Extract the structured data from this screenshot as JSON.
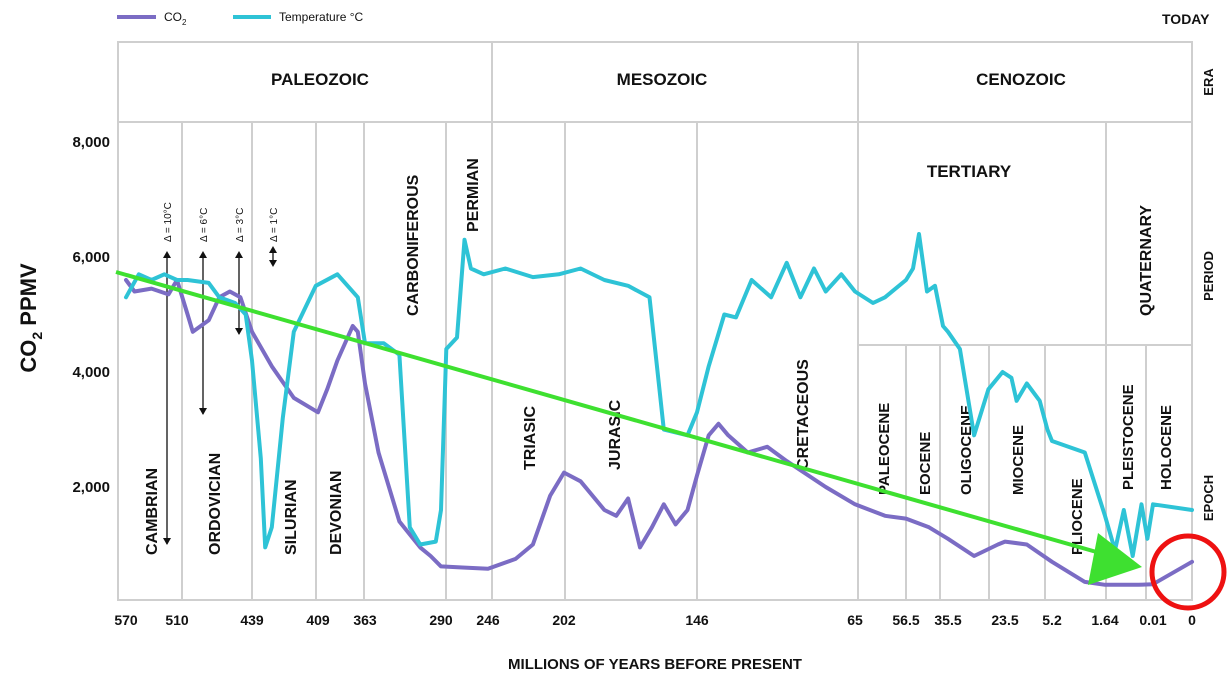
{
  "chart_data": {
    "type": "line",
    "title": "",
    "xlabel": "MILLIONS OF YEARS BEFORE PRESENT",
    "ylabel": "CO2 PPMV",
    "ylabel_main": "CO",
    "ylabel_sub": "2",
    "ylabel_rest": " PPMV",
    "x_ticks": [
      "570",
      "510",
      "439",
      "409",
      "363",
      "290",
      "246",
      "202",
      "146",
      "65",
      "56.5",
      "35.5",
      "23.5",
      "5.2",
      "1.64",
      "0.01",
      "0"
    ],
    "y_ticks": [
      2000,
      4000,
      6000,
      8000
    ],
    "y_tick_labels": [
      "2,000",
      "4,000",
      "6,000",
      "8,000"
    ],
    "ylim": [
      0,
      8000
    ],
    "grid": false,
    "legend": {
      "position": "top-left",
      "co2_main": "CO",
      "co2_sub": "2",
      "temp": "Temperature °C"
    },
    "right_labels": {
      "today": "TODAY",
      "era": "ERA",
      "period": "PERIOD",
      "epoch": "EPOCH"
    },
    "eras": [
      "PALEOZOIC",
      "MESOZOIC",
      "CENOZOIC"
    ],
    "periods": [
      "CAMBRIAN",
      "ORDOVICIAN",
      "SILURIAN",
      "DEVONIAN",
      "CARBONIFEROUS",
      "PERMIAN",
      "TRIASIC",
      "JURASIC",
      "CRETACEOUS",
      "TERTIARY",
      "QUATERNARY"
    ],
    "epochs": [
      "PALEOCENE",
      "EOCENE",
      "OLIGOCENE",
      "MIOCENE",
      "PLIOCENE",
      "PLEISTOCENE",
      "HOLOCENE"
    ],
    "deltas": [
      "Δ = 10°C",
      "Δ = 6°C",
      "Δ = 3°C",
      "Δ = 1°C"
    ],
    "series": [
      {
        "name": "CO2",
        "color": "#7b6cc4",
        "values": [
          [
            570,
            5600
          ],
          [
            560,
            5400
          ],
          [
            540,
            5450
          ],
          [
            520,
            5350
          ],
          [
            510,
            5600
          ],
          [
            500,
            5000
          ],
          [
            495,
            4700
          ],
          [
            480,
            4900
          ],
          [
            470,
            5300
          ],
          [
            460,
            5400
          ],
          [
            450,
            5300
          ],
          [
            439,
            4700
          ],
          [
            430,
            4100
          ],
          [
            420,
            3550
          ],
          [
            409,
            3300
          ],
          [
            400,
            3700
          ],
          [
            390,
            4200
          ],
          [
            375,
            4800
          ],
          [
            370,
            4700
          ],
          [
            363,
            3800
          ],
          [
            350,
            2600
          ],
          [
            330,
            1400
          ],
          [
            310,
            950
          ],
          [
            300,
            800
          ],
          [
            290,
            620
          ],
          [
            270,
            600
          ],
          [
            246,
            580
          ],
          [
            230,
            750
          ],
          [
            220,
            1000
          ],
          [
            210,
            1850
          ],
          [
            202,
            2250
          ],
          [
            195,
            2100
          ],
          [
            185,
            1600
          ],
          [
            180,
            1500
          ],
          [
            175,
            1800
          ],
          [
            170,
            950
          ],
          [
            165,
            1300
          ],
          [
            160,
            1700
          ],
          [
            155,
            1350
          ],
          [
            150,
            1600
          ],
          [
            146,
            2200
          ],
          [
            140,
            2900
          ],
          [
            135,
            3100
          ],
          [
            130,
            2900
          ],
          [
            120,
            2600
          ],
          [
            110,
            2700
          ],
          [
            100,
            2450
          ],
          [
            80,
            2000
          ],
          [
            65,
            1700
          ],
          [
            60,
            1500
          ],
          [
            56.5,
            1450
          ],
          [
            45,
            1300
          ],
          [
            35.5,
            1100
          ],
          [
            30,
            800
          ],
          [
            25,
            1000
          ],
          [
            23.5,
            1050
          ],
          [
            15,
            1000
          ],
          [
            5.2,
            700
          ],
          [
            3,
            350
          ],
          [
            1.64,
            300
          ],
          [
            0.5,
            300
          ],
          [
            0.01,
            310
          ],
          [
            0,
            700
          ]
        ]
      },
      {
        "name": "Temperature °C",
        "color": "#2ec3d6",
        "values": [
          [
            570,
            5300
          ],
          [
            555,
            5700
          ],
          [
            540,
            5600
          ],
          [
            525,
            5700
          ],
          [
            510,
            5600
          ],
          [
            500,
            5600
          ],
          [
            480,
            5550
          ],
          [
            470,
            5300
          ],
          [
            455,
            5200
          ],
          [
            445,
            5000
          ],
          [
            439,
            4200
          ],
          [
            435,
            2500
          ],
          [
            433,
            950
          ],
          [
            430,
            1300
          ],
          [
            425,
            3200
          ],
          [
            420,
            4700
          ],
          [
            410,
            5500
          ],
          [
            390,
            5700
          ],
          [
            370,
            5300
          ],
          [
            363,
            4500
          ],
          [
            345,
            4500
          ],
          [
            330,
            4300
          ],
          [
            325,
            2800
          ],
          [
            320,
            1300
          ],
          [
            310,
            1000
          ],
          [
            295,
            1050
          ],
          [
            290,
            1600
          ],
          [
            285,
            4400
          ],
          [
            275,
            4600
          ],
          [
            268,
            6300
          ],
          [
            262,
            5800
          ],
          [
            250,
            5700
          ],
          [
            236,
            5800
          ],
          [
            220,
            5650
          ],
          [
            205,
            5700
          ],
          [
            195,
            5800
          ],
          [
            185,
            5600
          ],
          [
            175,
            5500
          ],
          [
            166,
            5300
          ],
          [
            160,
            3000
          ],
          [
            150,
            2900
          ],
          [
            146,
            3300
          ],
          [
            140,
            4100
          ],
          [
            132,
            5000
          ],
          [
            126,
            4950
          ],
          [
            118,
            5600
          ],
          [
            108,
            5300
          ],
          [
            100,
            5900
          ],
          [
            93,
            5300
          ],
          [
            86,
            5800
          ],
          [
            80,
            5400
          ],
          [
            72,
            5700
          ],
          [
            65,
            5400
          ],
          [
            62,
            5200
          ],
          [
            60,
            5300
          ],
          [
            56.5,
            5600
          ],
          [
            53,
            5800
          ],
          [
            50,
            6400
          ],
          [
            46,
            5400
          ],
          [
            42,
            5500
          ],
          [
            38,
            4800
          ],
          [
            35.5,
            4700
          ],
          [
            33,
            4400
          ],
          [
            30,
            2900
          ],
          [
            27,
            3700
          ],
          [
            24,
            4000
          ],
          [
            21,
            3900
          ],
          [
            19,
            3500
          ],
          [
            15,
            3800
          ],
          [
            10,
            3500
          ],
          [
            7,
            3000
          ],
          [
            5.2,
            2800
          ],
          [
            3,
            2600
          ],
          [
            1.64,
            1500
          ],
          [
            1.3,
            900
          ],
          [
            1.0,
            1600
          ],
          [
            0.7,
            800
          ],
          [
            0.4,
            1700
          ],
          [
            0.2,
            1100
          ],
          [
            0.01,
            1700
          ],
          [
            0,
            1600
          ]
        ]
      }
    ]
  }
}
